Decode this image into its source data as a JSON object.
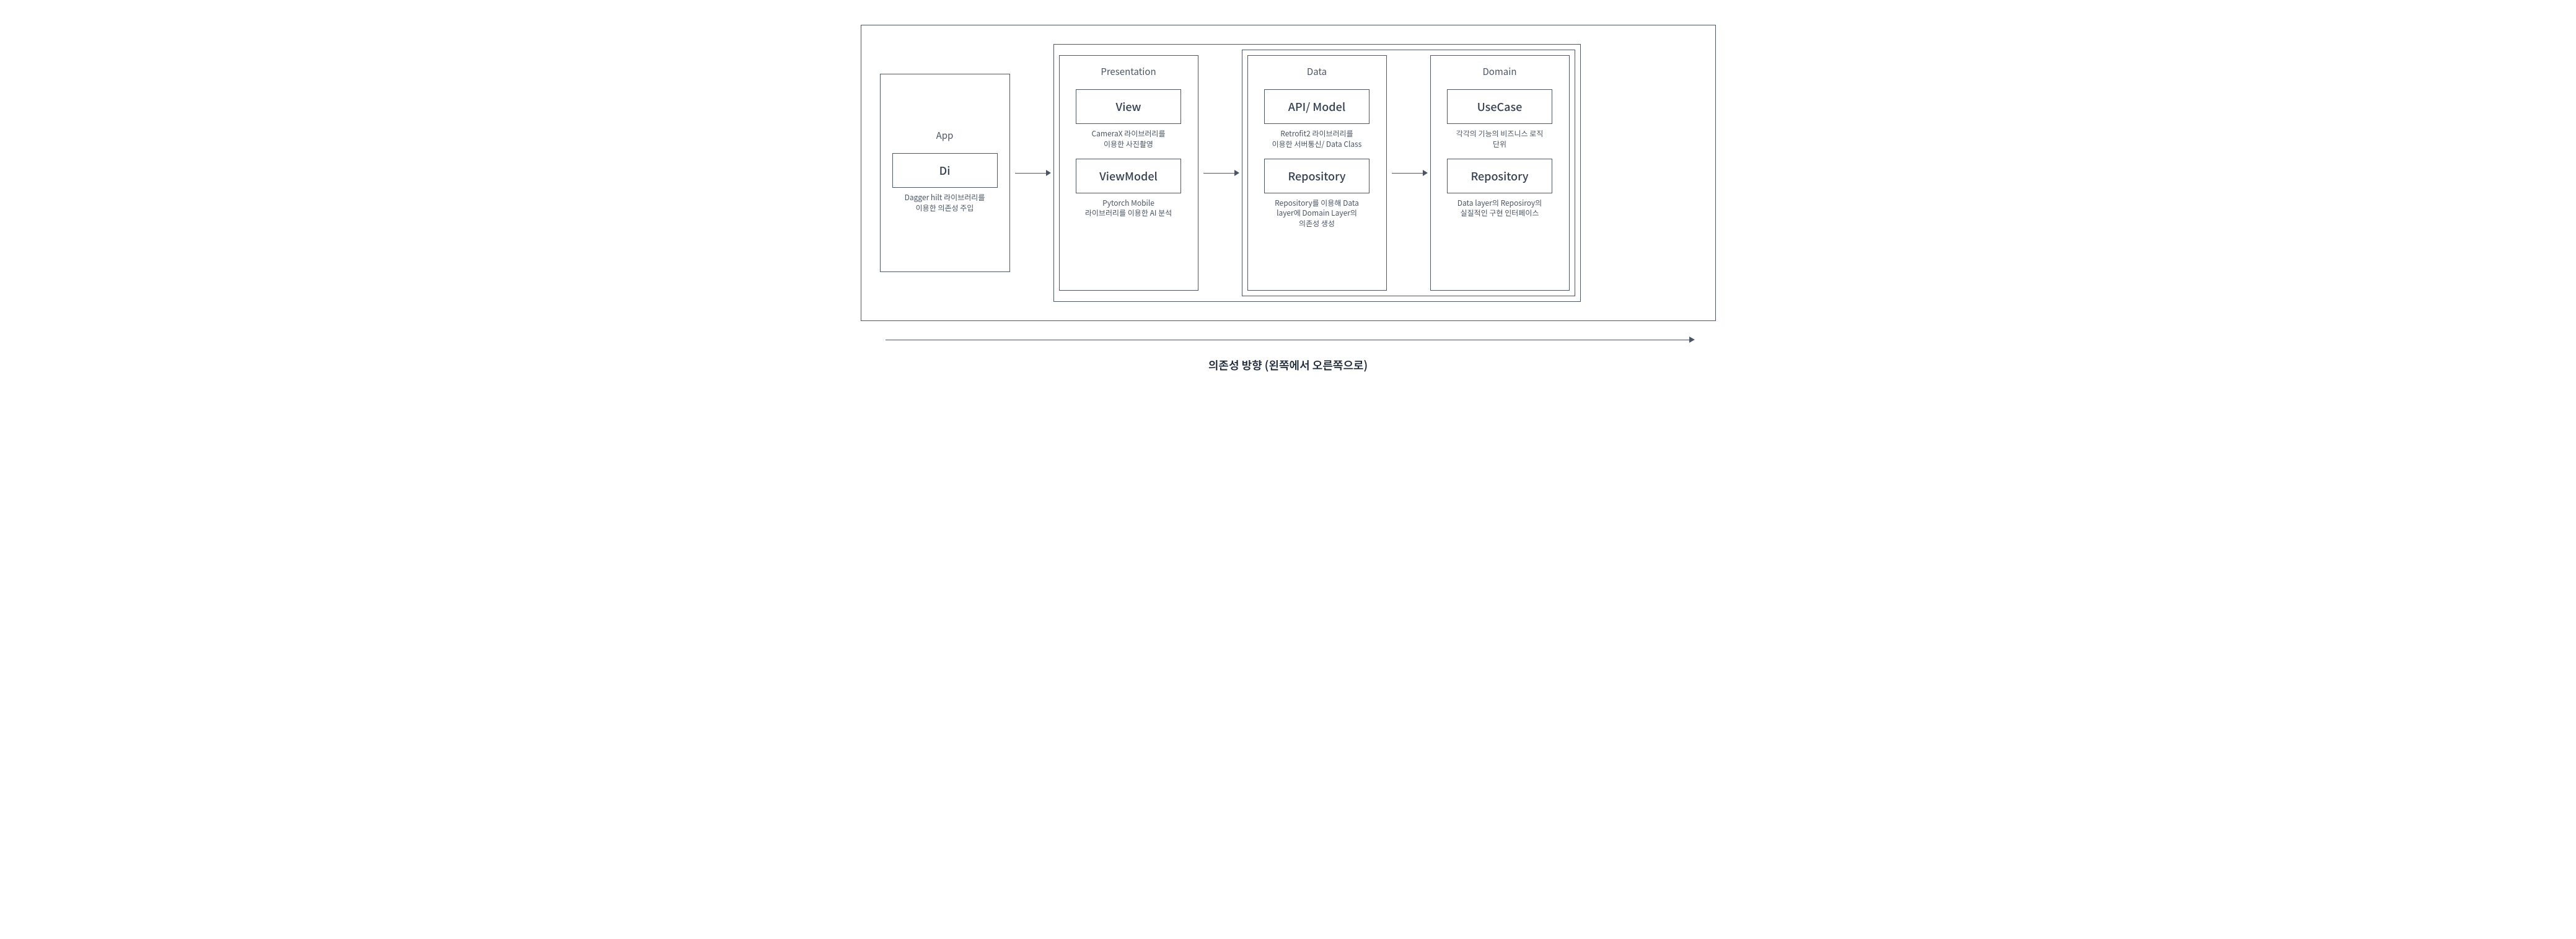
{
  "diagram": {
    "type": "flowchart",
    "direction": "left-to-right",
    "border_color": "#4b5563",
    "text_color": "#4b5563",
    "box_title_color": "#374151",
    "background_color": "#ffffff",
    "title_fontsize": 15,
    "box_fontsize": 18,
    "desc_fontsize": 12,
    "caption_fontsize": 18
  },
  "modules": {
    "app": {
      "title": "App",
      "boxes": [
        {
          "name": "Di",
          "desc": "Dagger hilt 라이브러리를\n이용한 의존성 주입"
        }
      ]
    },
    "presentation": {
      "title": "Presentation",
      "boxes": [
        {
          "name": "View",
          "desc": "CameraX 라이브러리를\n이용한 사진촬영"
        },
        {
          "name": "ViewModel",
          "desc": "Pytorch Mobile\n라이브러리를 이용한 AI 분석"
        }
      ]
    },
    "data": {
      "title": "Data",
      "boxes": [
        {
          "name": "API/ Model",
          "desc": "Retrofit2 라이브러리를\n이용한 서버통신/ Data Class"
        },
        {
          "name": "Repository",
          "desc": "Repository를 이용해 Data\nlayer에 Domain Layer의\n의존성 생성"
        }
      ]
    },
    "domain": {
      "title": "Domain",
      "boxes": [
        {
          "name": "UseCase",
          "desc": "각각의 기능의 비즈니스 로직\n단위"
        },
        {
          "name": "Repository",
          "desc": "Data layer의 Reposiroy의\n실질적인 구현 인터페이스"
        }
      ]
    }
  },
  "caption": "의존성 방향 (왼쪽에서 오른쪽으로)"
}
